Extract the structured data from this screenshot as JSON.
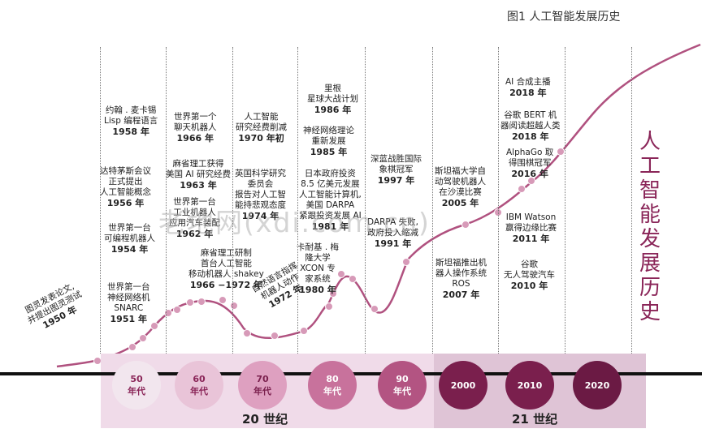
{
  "figure_title": "图1 人工智能发展历史",
  "side_title": [
    "人",
    "工",
    "智",
    "能",
    "发",
    "展",
    "历",
    "史"
  ],
  "watermark": "老地网(xdi.com.cn)",
  "centuries": [
    {
      "label": "20 世纪"
    },
    {
      "label": "21 世纪"
    }
  ],
  "decades": [
    {
      "line1": "50",
      "line2": "年代",
      "fill": "#f2e6ee",
      "text": "#8a2558"
    },
    {
      "line1": "60",
      "line2": "年代",
      "fill": "#e9c4d8",
      "text": "#8a2558"
    },
    {
      "line1": "70",
      "line2": "年代",
      "fill": "#dea0c0",
      "text": "#7a1f4d"
    },
    {
      "line1": "80",
      "line2": "年代",
      "fill": "#c8729c",
      "text": "#ffffff"
    },
    {
      "line1": "90",
      "line2": "年代",
      "fill": "#b35482",
      "text": "#ffffff"
    },
    {
      "line1": "2000",
      "line2": "",
      "fill": "#7a1f4d",
      "text": "#ffffff"
    },
    {
      "line1": "2010",
      "line2": "",
      "fill": "#7a1f4d",
      "text": "#ffffff"
    },
    {
      "line1": "2020",
      "line2": "",
      "fill": "#6b1a44",
      "text": "#ffffff"
    }
  ],
  "events": [
    {
      "lines": [
        "图灵发表论文,",
        "并提出图灵测试"
      ],
      "year": "1950 年"
    },
    {
      "lines": [
        "世界第一台",
        "神经网络机",
        "SNARC"
      ],
      "year": "1951 年"
    },
    {
      "lines": [
        "世界第一台",
        "可编程机器人"
      ],
      "year": "1954 年"
    },
    {
      "lines": [
        "达特茅斯会议",
        "正式提出",
        "人工智能概念"
      ],
      "year": "1956 年"
    },
    {
      "lines": [
        "约翰 . 麦卡锡",
        "Lisp 编程语言"
      ],
      "year": "1958 年"
    },
    {
      "lines": [
        "世界第一台",
        "工业机器人",
        "应用汽车装配"
      ],
      "year": "1962 年"
    },
    {
      "lines": [
        "麻省理工获得",
        "美国 AI 研究经费"
      ],
      "year": "1963 年"
    },
    {
      "lines": [
        "世界第一个",
        "聊天机器人"
      ],
      "year": "1966 年"
    },
    {
      "lines": [
        "麻省理工研制",
        "首台人工智能",
        "移动机器人 shakey"
      ],
      "year": "1966 −1972 年"
    },
    {
      "lines": [
        "人工智能",
        "研究经费削减"
      ],
      "year": "1970 年初"
    },
    {
      "lines": [
        "英国科学研究",
        "委员会",
        "报告对人工智",
        "能持悲观态度"
      ],
      "year": "1974 年"
    },
    {
      "lines": [
        "自然语言指挥",
        "机器人动作"
      ],
      "year": "1972 年"
    },
    {
      "lines": [
        "卡耐基 . 梅",
        "隆大学",
        "XCON 专",
        "家系统"
      ],
      "year": "1980 年"
    },
    {
      "lines": [
        "日本政府投资",
        "8.5 亿美元发展",
        "人工智能计算机,",
        "美国 DARPA",
        "紧跟投资发展 AI"
      ],
      "year": "1981 年"
    },
    {
      "lines": [
        "神经网络理论",
        "重新发展"
      ],
      "year": "1985 年"
    },
    {
      "lines": [
        "里根",
        "星球大战计划"
      ],
      "year": "1986 年"
    },
    {
      "lines": [
        "DARPA 失败,",
        "政府投入缩减"
      ],
      "year": "1991 年"
    },
    {
      "lines": [
        "深蓝战胜国际",
        "象棋冠军"
      ],
      "year": "1997 年"
    },
    {
      "lines": [
        "斯坦福大学自",
        "动驾驶机器人",
        "在沙漠比赛"
      ],
      "year": "2005 年"
    },
    {
      "lines": [
        "斯坦福推出机",
        "器人操作系统",
        "ROS"
      ],
      "year": "2007 年"
    },
    {
      "lines": [
        "谷歌",
        "无人驾驶汽车"
      ],
      "year": "2010 年"
    },
    {
      "lines": [
        "IBM Watson",
        "赢得边缘比赛"
      ],
      "year": "2011 年"
    },
    {
      "lines": [
        "AlphaGo 取",
        "得围棋冠军"
      ],
      "year": "2016 年"
    },
    {
      "lines": [
        "谷歌 BERT 机",
        "器阅读超越人类"
      ],
      "year": "2018 年"
    },
    {
      "lines": [
        "AI 合成主播"
      ],
      "year": "2018 年"
    }
  ],
  "colors": {
    "curve": "#b0517f",
    "dot": "#c07098",
    "band20": "#f0dbe9",
    "band21": "#dfc4d6",
    "accent": "#8a2558"
  }
}
